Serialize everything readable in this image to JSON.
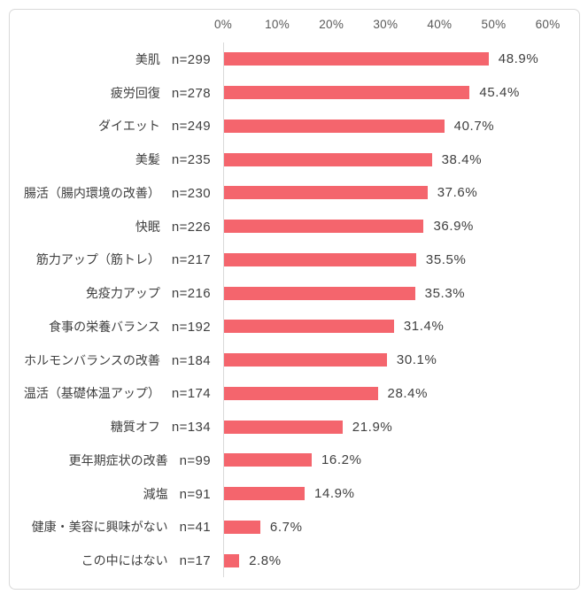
{
  "chart_data": {
    "type": "bar",
    "orientation": "horizontal",
    "title": "",
    "categories": [
      "美肌",
      "疲労回復",
      "ダイエット",
      "美髪",
      "腸活（腸内環境の改善）",
      "快眠",
      "筋力アップ（筋トレ）",
      "免疫力アップ",
      "食事の栄養バランス",
      "ホルモンバランスの改善",
      "温活（基礎体温アップ）",
      "糖質オフ",
      "更年期症状の改善",
      "減塩",
      "健康・美容に興味がない",
      "この中にはない"
    ],
    "n_labels": [
      "n=299",
      "n=278",
      "n=249",
      "n=235",
      "n=230",
      "n=226",
      "n=217",
      "n=216",
      "n=192",
      "n=184",
      "n=174",
      "n=134",
      "n=99",
      "n=91",
      "n=41",
      "n=17"
    ],
    "values": [
      48.9,
      45.4,
      40.7,
      38.4,
      37.6,
      36.9,
      35.5,
      35.3,
      31.4,
      30.1,
      28.4,
      21.9,
      16.2,
      14.9,
      6.7,
      2.8
    ],
    "value_labels": [
      "48.9%",
      "45.4%",
      "40.7%",
      "38.4%",
      "37.6%",
      "36.9%",
      "35.5%",
      "35.3%",
      "31.4%",
      "30.1%",
      "28.4%",
      "21.9%",
      "16.2%",
      "14.9%",
      "6.7%",
      "2.8%"
    ],
    "x_ticks": [
      "0%",
      "10%",
      "20%",
      "30%",
      "40%",
      "50%",
      "60%"
    ],
    "xlim": [
      0,
      60
    ],
    "grid": false,
    "legend": false,
    "bar_color": "#F4656D",
    "axis_text_color": "#595959",
    "label_text_color": "#404040"
  }
}
